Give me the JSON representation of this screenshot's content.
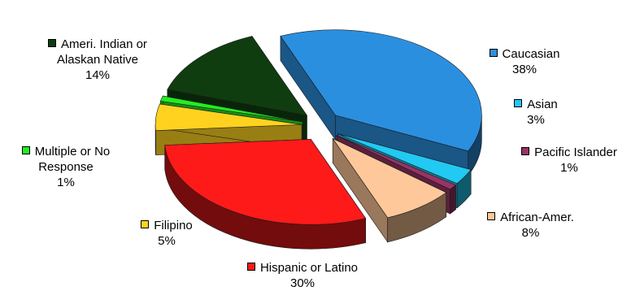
{
  "chart_data": {
    "type": "pie",
    "style": "3d-exploded",
    "title": "",
    "legend": "none",
    "slices": [
      {
        "label": "Caucasian",
        "value": 38,
        "display": "38%",
        "color": "#2b8fe0"
      },
      {
        "label": "Asian",
        "value": 3,
        "display": "3%",
        "color": "#22c9f2"
      },
      {
        "label": "Pacific Islander",
        "value": 1,
        "display": "1%",
        "color": "#993366"
      },
      {
        "label": "African-Amer.",
        "value": 8,
        "display": "8%",
        "color": "#ffc89a"
      },
      {
        "label": "Hispanic or Latino",
        "value": 30,
        "display": "30%",
        "color": "#ff1a1a"
      },
      {
        "label": "Filipino",
        "value": 5,
        "display": "5%",
        "color": "#ffd21f"
      },
      {
        "label": "Multiple or No Response",
        "value": 1,
        "display": "1%",
        "color": "#22ee22"
      },
      {
        "label": "Ameri. Indian or Alaskan Native",
        "value": 14,
        "display": "14%",
        "color": "#0f3d0f"
      }
    ]
  }
}
